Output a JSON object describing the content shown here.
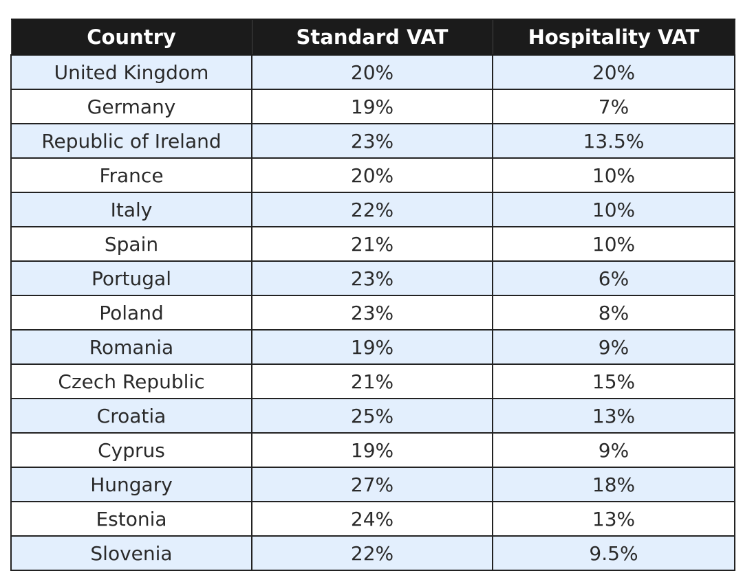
{
  "table": {
    "headers": [
      "Country",
      "Standard VAT",
      "Hospitality VAT"
    ],
    "rows": [
      [
        "United Kingdom",
        "20%",
        "20%"
      ],
      [
        "Germany",
        "19%",
        "7%"
      ],
      [
        "Republic of Ireland",
        "23%",
        "13.5%"
      ],
      [
        "France",
        "20%",
        "10%"
      ],
      [
        "Italy",
        "22%",
        "10%"
      ],
      [
        "Spain",
        "21%",
        "10%"
      ],
      [
        "Portugal",
        "23%",
        "6%"
      ],
      [
        "Poland",
        "23%",
        "8%"
      ],
      [
        "Romania",
        "19%",
        "9%"
      ],
      [
        "Czech Republic",
        "21%",
        "15%"
      ],
      [
        "Croatia",
        "25%",
        "13%"
      ],
      [
        "Cyprus",
        "19%",
        "9%"
      ],
      [
        "Hungary",
        "27%",
        "18%"
      ],
      [
        "Estonia",
        "24%",
        "13%"
      ],
      [
        "Slovenia",
        "22%",
        "9.5%"
      ]
    ]
  },
  "colors": {
    "header_bg": "#1b1b1b",
    "header_text": "#ffffff",
    "alt_row_bg": "#e3effd",
    "row_bg": "#ffffff"
  }
}
